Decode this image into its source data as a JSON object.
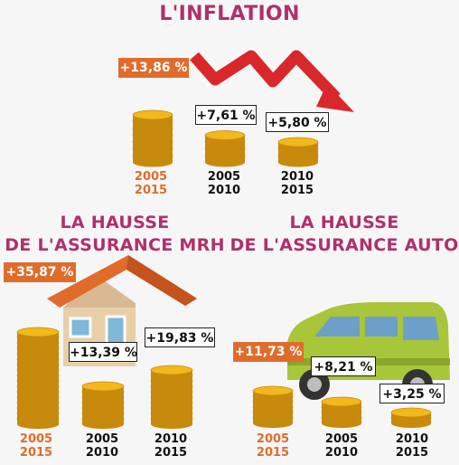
{
  "colors": {
    "title": "#b0306a",
    "highlight": "#e06c2c",
    "coin": "#f2b81c",
    "coin_edge": "#c88a0c",
    "arrow": "#d8282a"
  },
  "chart_data": [
    {
      "type": "bar",
      "title": "L'INFLATION",
      "categories": [
        {
          "from": "2005",
          "to": "2015"
        },
        {
          "from": "2005",
          "to": "2010"
        },
        {
          "from": "2010",
          "to": "2015"
        }
      ],
      "values": [
        13.86,
        7.61,
        5.8
      ],
      "labels": [
        "+13,86 %",
        "+7,61 %",
        "+5,80 %"
      ],
      "highlight_index": 0,
      "decoration": "red-zigzag-arrow-down-icon"
    },
    {
      "type": "bar",
      "title": "LA HAUSSE DE L'ASSURANCE MRH",
      "title_lines": [
        "LA HAUSSE",
        "DE L'ASSURANCE MRH"
      ],
      "categories": [
        {
          "from": "2005",
          "to": "2015"
        },
        {
          "from": "2005",
          "to": "2010"
        },
        {
          "from": "2010",
          "to": "2015"
        }
      ],
      "values": [
        35.87,
        13.39,
        19.83
      ],
      "labels": [
        "+35,87 %",
        "+13,39 %",
        "+19,83 %"
      ],
      "highlight_index": 0,
      "decoration": "house-icon"
    },
    {
      "type": "bar",
      "title": "LA HAUSSE DE L'ASSURANCE AUTO",
      "title_lines": [
        "LA HAUSSE",
        "DE L'ASSURANCE AUTO"
      ],
      "categories": [
        {
          "from": "2005",
          "to": "2015"
        },
        {
          "from": "2005",
          "to": "2010"
        },
        {
          "from": "2010",
          "to": "2015"
        }
      ],
      "values": [
        11.73,
        8.21,
        3.25
      ],
      "labels": [
        "+11,73 %",
        "+8,21 %",
        "+3,25 %"
      ],
      "highlight_index": 0,
      "decoration": "car-icon"
    }
  ]
}
